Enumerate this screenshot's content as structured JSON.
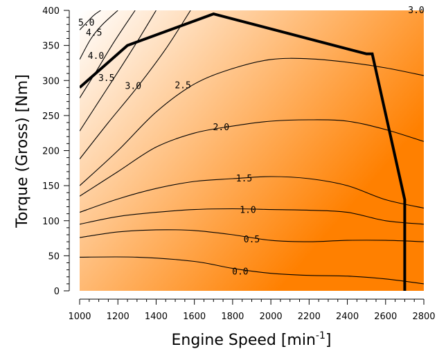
{
  "chart_data": {
    "type": "contour",
    "title": "",
    "xlabel": "Engine Speed [min",
    "xlabel_superscript": "-1",
    "xlabel_suffix": "]",
    "ylabel": "Torque (Gross) [Nm]",
    "xlim": [
      1000,
      2800
    ],
    "ylim": [
      0,
      400
    ],
    "x_ticks": [
      1000,
      1200,
      1400,
      1600,
      1800,
      2000,
      2200,
      2400,
      2600,
      2800
    ],
    "y_ticks": [
      0,
      50,
      100,
      150,
      200,
      250,
      300,
      350,
      400
    ],
    "grid": false,
    "background_gradient": {
      "low_color": "#ff8000",
      "high_color": "#ffffff"
    },
    "full_load_curve": {
      "points": [
        [
          1000,
          290
        ],
        [
          1250,
          350
        ],
        [
          1700,
          395
        ],
        [
          2500,
          338
        ],
        [
          2530,
          338
        ],
        [
          2700,
          130
        ],
        [
          2700,
          0
        ]
      ]
    },
    "contours": [
      {
        "level": "0.0",
        "label_at": [
          1840,
          27
        ],
        "points": [
          [
            1000,
            48
          ],
          [
            1300,
            48
          ],
          [
            1600,
            42
          ],
          [
            1800,
            32
          ],
          [
            2000,
            25
          ],
          [
            2200,
            22
          ],
          [
            2400,
            21
          ],
          [
            2600,
            17
          ],
          [
            2800,
            10
          ]
        ]
      },
      {
        "level": "0.5",
        "label_at": [
          1900,
          73
        ],
        "points": [
          [
            1000,
            76
          ],
          [
            1200,
            84
          ],
          [
            1400,
            87
          ],
          [
            1600,
            86
          ],
          [
            1800,
            80
          ],
          [
            2000,
            72
          ],
          [
            2200,
            70
          ],
          [
            2400,
            72
          ],
          [
            2600,
            72
          ],
          [
            2800,
            70
          ]
        ]
      },
      {
        "level": "1.0",
        "label_at": [
          1880,
          115
        ],
        "points": [
          [
            1000,
            95
          ],
          [
            1200,
            106
          ],
          [
            1400,
            112
          ],
          [
            1600,
            116
          ],
          [
            1800,
            117
          ],
          [
            2000,
            116
          ],
          [
            2200,
            115
          ],
          [
            2400,
            112
          ],
          [
            2600,
            100
          ],
          [
            2800,
            95
          ]
        ]
      },
      {
        "level": "1.5",
        "label_at": [
          1860,
          160
        ],
        "points": [
          [
            1000,
            112
          ],
          [
            1200,
            131
          ],
          [
            1400,
            146
          ],
          [
            1600,
            156
          ],
          [
            1800,
            160
          ],
          [
            2000,
            163
          ],
          [
            2200,
            160
          ],
          [
            2400,
            150
          ],
          [
            2600,
            130
          ],
          [
            2800,
            118
          ]
        ]
      },
      {
        "level": "2.0",
        "label_at": [
          1740,
          233
        ],
        "points": [
          [
            1000,
            135
          ],
          [
            1200,
            170
          ],
          [
            1400,
            205
          ],
          [
            1600,
            225
          ],
          [
            1800,
            235
          ],
          [
            2000,
            242
          ],
          [
            2200,
            244
          ],
          [
            2400,
            242
          ],
          [
            2600,
            230
          ],
          [
            2800,
            213
          ]
        ]
      },
      {
        "level": "2.5",
        "label_at": [
          1540,
          293
        ],
        "points": [
          [
            1000,
            150
          ],
          [
            1200,
            200
          ],
          [
            1400,
            255
          ],
          [
            1600,
            295
          ],
          [
            1800,
            317
          ],
          [
            2000,
            330
          ],
          [
            2200,
            331
          ],
          [
            2400,
            326
          ],
          [
            2600,
            318
          ],
          [
            2800,
            307
          ]
        ]
      },
      {
        "level": "3.0",
        "label_at": [
          1280,
          292
        ],
        "points": [
          [
            1000,
            188
          ],
          [
            1150,
            240
          ],
          [
            1300,
            290
          ],
          [
            1450,
            345
          ],
          [
            1580,
            400
          ]
        ]
      },
      {
        "level": "3.0",
        "label_at": [
          2760,
          400
        ],
        "points": []
      },
      {
        "level": "3.5",
        "label_at": [
          1140,
          303
        ],
        "points": [
          [
            1000,
            228
          ],
          [
            1100,
            270
          ],
          [
            1200,
            312
          ],
          [
            1300,
            355
          ],
          [
            1400,
            400
          ]
        ]
      },
      {
        "level": "4.0",
        "label_at": [
          1085,
          335
        ],
        "points": [
          [
            1000,
            275
          ],
          [
            1080,
            310
          ],
          [
            1180,
            355
          ],
          [
            1290,
            400
          ]
        ]
      },
      {
        "level": "4.5",
        "label_at": [
          1075,
          368
        ],
        "points": [
          [
            1000,
            330
          ],
          [
            1060,
            360
          ],
          [
            1120,
            380
          ],
          [
            1200,
            400
          ]
        ]
      },
      {
        "level": "5.0",
        "label_at": [
          1035,
          382
        ],
        "points": [
          [
            1000,
            372
          ],
          [
            1070,
            392
          ],
          [
            1110,
            400
          ]
        ]
      }
    ]
  }
}
